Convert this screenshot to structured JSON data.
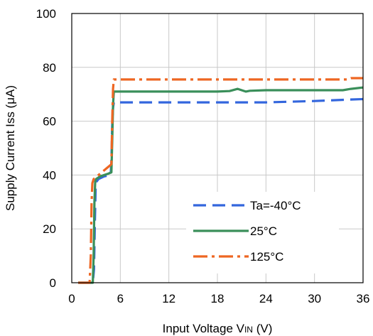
{
  "chart_data": {
    "type": "line",
    "xlabel": "Input Voltage VIN (V)",
    "xlabel_parts": {
      "pre": "Input Voltage V",
      "sub": "IN",
      "post": " (V)"
    },
    "ylabel": "Supply Current Iss (μA)",
    "xlim": [
      0,
      36
    ],
    "ylim": [
      0,
      100
    ],
    "xticks": [
      0,
      6,
      12,
      18,
      24,
      30,
      36
    ],
    "yticks": [
      0,
      20,
      40,
      60,
      80,
      100
    ],
    "grid": true,
    "legend_position": "bottom-right",
    "series": [
      {
        "name": "Ta=-40°C",
        "color": "#3366dd",
        "dash": "18,9",
        "x": [
          0.8,
          2.6,
          2.75,
          2.85,
          2.95,
          3.05,
          3.3,
          4.0,
          4.8,
          4.9,
          5.0,
          5.1,
          5.2,
          6.0,
          12,
          18,
          24,
          30,
          34,
          36
        ],
        "y": [
          0,
          0,
          5,
          22,
          35,
          37.5,
          38.5,
          39.5,
          40,
          45,
          58,
          65,
          67,
          67,
          67,
          67,
          67,
          67.5,
          68,
          68.2
        ]
      },
      {
        "name": "25°C",
        "color": "#3a8f5a",
        "dash": "",
        "x": [
          0.8,
          2.6,
          2.7,
          2.8,
          2.9,
          3.0,
          3.5,
          4.5,
          4.9,
          5.0,
          5.1,
          5.2,
          6,
          12,
          18,
          19.5,
          20.5,
          21.5,
          22,
          24,
          30,
          33.5,
          34.5,
          36
        ],
        "y": [
          0,
          0,
          10,
          30,
          37.5,
          38.5,
          39.5,
          40.5,
          41,
          52,
          66,
          71,
          71,
          71,
          71,
          71.2,
          72,
          71,
          71.3,
          71.5,
          71.5,
          71.5,
          72,
          72.5
        ]
      },
      {
        "name": "125°C",
        "color": "#ee6622",
        "dash": "20,6,4,6",
        "x": [
          0.8,
          2.2,
          2.35,
          2.45,
          2.55,
          2.7,
          3.5,
          4.5,
          4.9,
          5.0,
          5.1,
          5.2,
          6,
          12,
          18,
          24,
          30,
          34,
          34.5,
          36
        ],
        "y": [
          0,
          0,
          10,
          30,
          37,
          38.5,
          40.5,
          43,
          44,
          60,
          72,
          75.5,
          75.5,
          75.5,
          75.5,
          75.5,
          75.5,
          75.5,
          76,
          76
        ]
      }
    ],
    "legend": [
      {
        "label": "Ta=-40°C",
        "color": "#3366dd",
        "dash": "18,9"
      },
      {
        "label": "25°C",
        "color": "#3a8f5a",
        "dash": ""
      },
      {
        "label": "125°C",
        "color": "#ee6622",
        "dash": "20,6,4,6"
      }
    ]
  }
}
